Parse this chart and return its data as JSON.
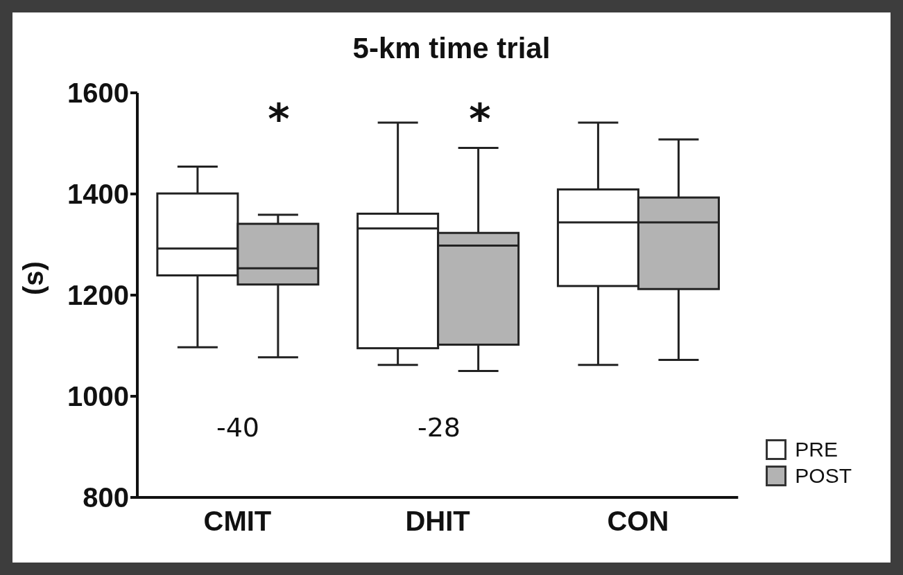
{
  "chart_data": {
    "type": "box",
    "title": "5-km time trial",
    "ylabel": "(s)",
    "categories": [
      "CMIT",
      "DHIT",
      "CON"
    ],
    "ylim": [
      800,
      1600
    ],
    "yticks": [
      800,
      1000,
      1200,
      1400,
      1600
    ],
    "legend": "bottom right",
    "grid": false,
    "series": [
      {
        "name": "PRE",
        "color": "#ffffff",
        "boxes": [
          {
            "low": 1097,
            "q1": 1239,
            "median": 1292,
            "q3": 1401,
            "high": 1454
          },
          {
            "low": 1062,
            "q1": 1095,
            "median": 1332,
            "q3": 1361,
            "high": 1541
          },
          {
            "low": 1062,
            "q1": 1218,
            "median": 1344,
            "q3": 1409,
            "high": 1541
          }
        ]
      },
      {
        "name": "POST",
        "color": "#b3b3b3",
        "boxes": [
          {
            "low": 1077,
            "q1": 1221,
            "median": 1253,
            "q3": 1341,
            "high": 1359
          },
          {
            "low": 1050,
            "q1": 1102,
            "median": 1298,
            "q3": 1323,
            "high": 1491
          },
          {
            "low": 1072,
            "q1": 1212,
            "median": 1344,
            "q3": 1393,
            "high": 1508
          }
        ]
      }
    ],
    "annotations": [
      "*",
      "*",
      "-40",
      "-28"
    ]
  }
}
